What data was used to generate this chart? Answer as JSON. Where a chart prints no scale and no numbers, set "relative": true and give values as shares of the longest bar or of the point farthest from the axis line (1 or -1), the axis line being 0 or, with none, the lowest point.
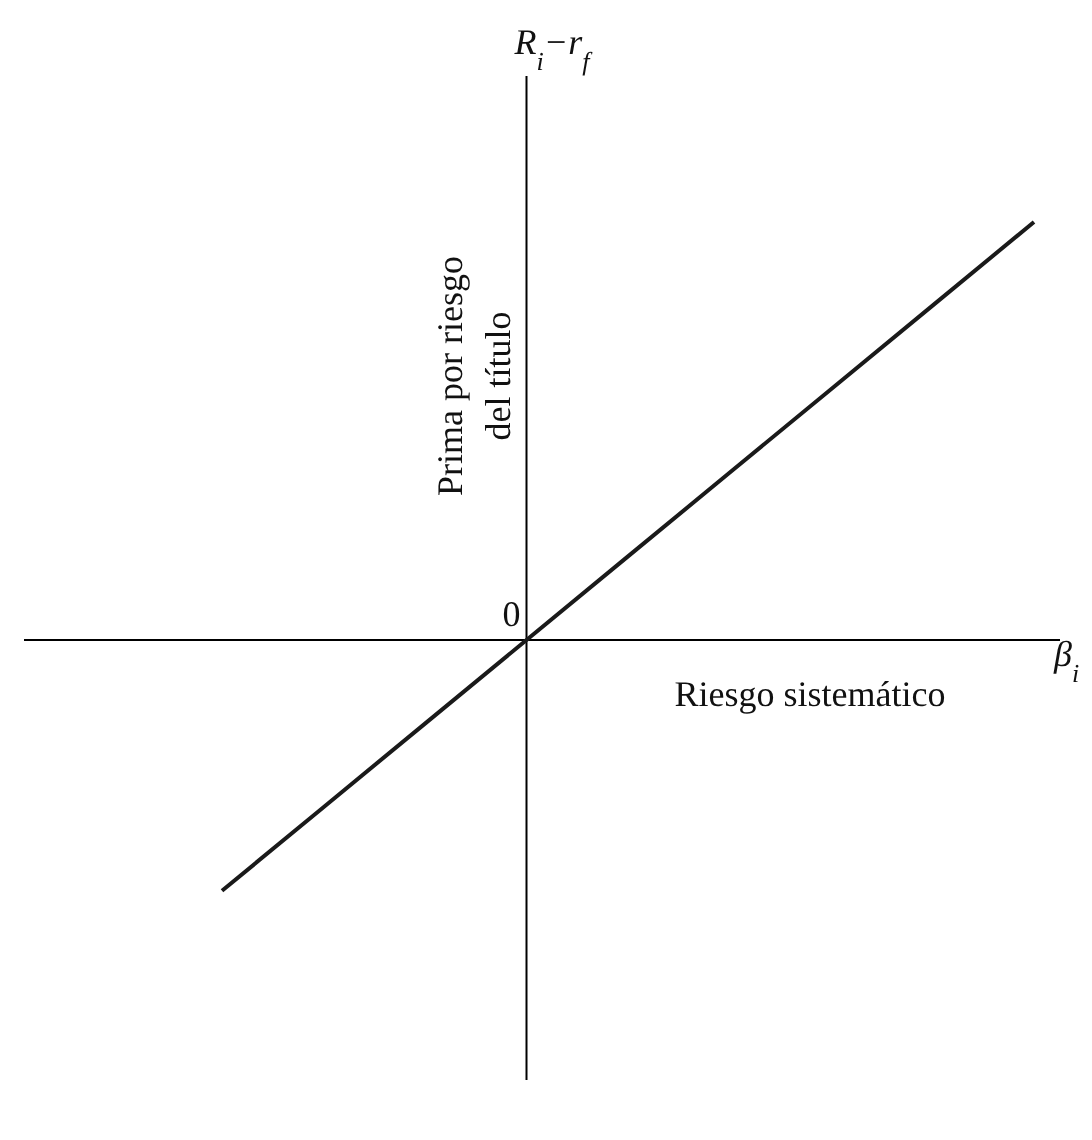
{
  "chart_data": {
    "type": "line",
    "relative": true,
    "xlabel": "Riesgo sistemático",
    "ylabel": "Prima por riesgo del título",
    "annotations": [
      "R$_{i}$−r$_{f}$",
      "β$_{i}$",
      {
        "text": "0",
        "y": 0
      }
    ],
    "categories": [
      null,
      null,
      null,
      null,
      null,
      null,
      null,
      null,
      null
    ],
    "series": [
      {
        "color": "#1a1a1a",
        "values": [
          -0.6,
          -0.4,
          -0.2,
          0,
          0.2,
          0.4,
          0.6,
          0.8,
          1
        ]
      }
    ],
    "marker": "none",
    "line_style": "solid"
  }
}
